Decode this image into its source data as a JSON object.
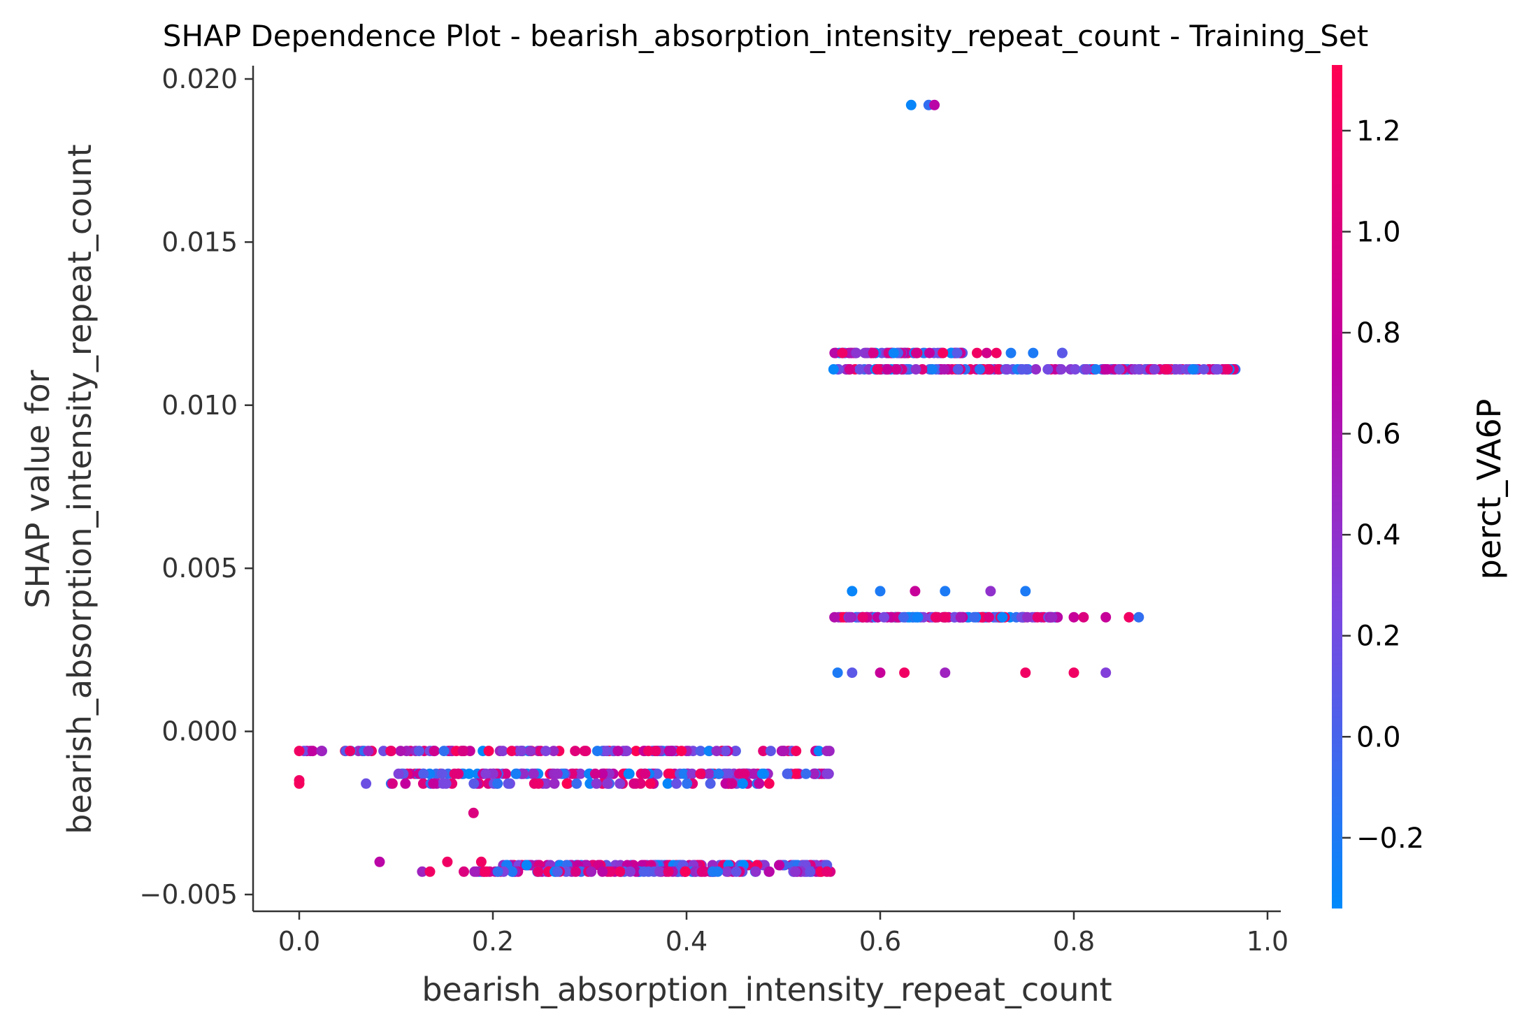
{
  "chart_data": {
    "type": "scatter",
    "title": "SHAP Dependence Plot - bearish_absorption_intensity_repeat_count - Training_Set",
    "xlabel": "bearish_absorption_intensity_repeat_count",
    "ylabel_line1": "SHAP value for",
    "ylabel_line2": "bearish_absorption_intensity_repeat_count",
    "colorbar_label": "perct_VA6P",
    "xlim": [
      -0.05,
      1.02
    ],
    "ylim": [
      -0.0055,
      0.0205
    ],
    "x_ticks": [
      0.0,
      0.2,
      0.4,
      0.6,
      0.8,
      1.0
    ],
    "x_tick_labels": [
      "0.0",
      "0.2",
      "0.4",
      "0.6",
      "0.8",
      "1.0"
    ],
    "y_ticks": [
      0.02,
      0.015,
      0.01,
      0.005,
      0.0,
      -0.005
    ],
    "y_tick_labels": [
      "0.020",
      "0.015",
      "0.010",
      "0.005",
      "0.000",
      "−0.005"
    ],
    "colorbar_range": [
      -0.34,
      1.33
    ],
    "colorbar_ticks": [
      1.2,
      1.0,
      0.8,
      0.6,
      0.4,
      0.2,
      0.0,
      -0.2
    ],
    "colorbar_tick_labels": [
      "1.2",
      "1.0",
      "0.8",
      "0.6",
      "0.4",
      "0.2",
      "0.0",
      "−0.2"
    ],
    "colormap": [
      "#008afb",
      "#7a47e0",
      "#c000a0",
      "#ff0052"
    ],
    "band_segments": [
      {
        "y": -0.0006,
        "x_from": 0.0,
        "x_to": 0.55,
        "count": 120
      },
      {
        "y": -0.0013,
        "x_from": 0.1,
        "x_to": 0.55,
        "count": 130
      },
      {
        "y": -0.0016,
        "x_from": 0.065,
        "x_to": 0.49,
        "count": 60
      },
      {
        "y": -0.0041,
        "x_from": 0.21,
        "x_to": 0.55,
        "count": 120
      },
      {
        "y": -0.0043,
        "x_from": 0.18,
        "x_to": 0.55,
        "count": 110
      },
      {
        "y": 0.0116,
        "x_from": 0.55,
        "x_to": 0.69,
        "count": 70
      },
      {
        "y": 0.0111,
        "x_from": 0.55,
        "x_to": 0.967,
        "count": 170
      },
      {
        "y": 0.0035,
        "x_from": 0.55,
        "x_to": 0.79,
        "count": 110
      }
    ],
    "points": [
      {
        "x": 0.0,
        "y": -0.0006,
        "c": 1.2
      },
      {
        "x": 0.0,
        "y": -0.0015,
        "c": 1.2
      },
      {
        "x": 0.0,
        "y": -0.0016,
        "c": 1.25
      },
      {
        "x": 0.023,
        "y": -0.0006,
        "c": 0.5
      },
      {
        "x": 0.18,
        "y": -0.0025,
        "c": 1.0
      },
      {
        "x": 0.083,
        "y": -0.004,
        "c": 0.7
      },
      {
        "x": 0.127,
        "y": -0.0043,
        "c": 0.5
      },
      {
        "x": 0.135,
        "y": -0.0043,
        "c": 1.2
      },
      {
        "x": 0.153,
        "y": -0.004,
        "c": 1.2
      },
      {
        "x": 0.17,
        "y": -0.0043,
        "c": 1.0
      },
      {
        "x": 0.188,
        "y": -0.004,
        "c": 1.2
      },
      {
        "x": 0.5,
        "y": -0.0006,
        "c": 0.6
      },
      {
        "x": 0.545,
        "y": -0.0006,
        "c": 0.5
      },
      {
        "x": 0.545,
        "y": -0.0013,
        "c": 0.3
      },
      {
        "x": 0.545,
        "y": -0.0041,
        "c": 0.1
      },
      {
        "x": 0.545,
        "y": -0.0043,
        "c": 1.1
      },
      {
        "x": 0.632,
        "y": 0.0192,
        "c": -0.3
      },
      {
        "x": 0.65,
        "y": 0.0192,
        "c": -0.1
      },
      {
        "x": 0.656,
        "y": 0.0192,
        "c": 0.7
      },
      {
        "x": 0.7,
        "y": 0.0116,
        "c": 1.2
      },
      {
        "x": 0.71,
        "y": 0.0116,
        "c": 0.9
      },
      {
        "x": 0.72,
        "y": 0.0116,
        "c": 1.2
      },
      {
        "x": 0.735,
        "y": 0.0116,
        "c": -0.2
      },
      {
        "x": 0.758,
        "y": 0.0116,
        "c": -0.2
      },
      {
        "x": 0.788,
        "y": 0.0116,
        "c": -0.3
      },
      {
        "x": 0.788,
        "y": 0.0116,
        "c": 0.1
      },
      {
        "x": 0.571,
        "y": 0.0043,
        "c": -0.3
      },
      {
        "x": 0.6,
        "y": 0.0043,
        "c": -0.2
      },
      {
        "x": 0.636,
        "y": 0.0043,
        "c": 0.8
      },
      {
        "x": 0.667,
        "y": 0.0043,
        "c": -0.2
      },
      {
        "x": 0.714,
        "y": 0.0043,
        "c": 0.4
      },
      {
        "x": 0.75,
        "y": 0.0043,
        "c": -0.2
      },
      {
        "x": 0.8,
        "y": 0.0035,
        "c": 0.8
      },
      {
        "x": 0.81,
        "y": 0.0035,
        "c": 1.0
      },
      {
        "x": 0.833,
        "y": 0.0035,
        "c": 0.8
      },
      {
        "x": 0.857,
        "y": 0.0035,
        "c": 1.2
      },
      {
        "x": 0.867,
        "y": 0.0035,
        "c": -0.1
      },
      {
        "x": 0.556,
        "y": 0.0018,
        "c": -0.2
      },
      {
        "x": 0.571,
        "y": 0.0018,
        "c": 0.1
      },
      {
        "x": 0.6,
        "y": 0.0018,
        "c": 0.8
      },
      {
        "x": 0.625,
        "y": 0.0018,
        "c": 1.2
      },
      {
        "x": 0.667,
        "y": 0.0018,
        "c": 0.5
      },
      {
        "x": 0.75,
        "y": 0.0018,
        "c": 1.2
      },
      {
        "x": 0.8,
        "y": 0.0018,
        "c": 1.2
      },
      {
        "x": 0.833,
        "y": 0.0018,
        "c": 0.3
      }
    ]
  }
}
